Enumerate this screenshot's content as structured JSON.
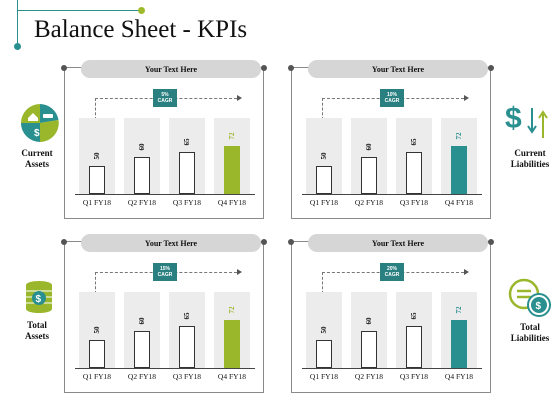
{
  "title": "Balance Sheet - KPIs",
  "colors": {
    "teal": "#2a8f8f",
    "green": "#9ab72b",
    "dark_teal": "#2a8080"
  },
  "side_labels": {
    "current_assets": [
      "Current",
      "Assets"
    ],
    "current_liabilities": [
      "Current",
      "Liabilities"
    ],
    "total_assets": [
      "Total",
      "Assets"
    ],
    "total_liabilities": [
      "Total",
      "Liabilities"
    ]
  },
  "icons": {
    "current_assets": "pie-home-car-money-icon",
    "current_liabilities": "dollar-arrows-icon",
    "total_assets": "coin-stack-icon",
    "total_liabilities": "equals-dollar-coin-icon"
  },
  "panels": [
    {
      "header": "Your Text Here",
      "cagr": [
        "5%",
        "CAGR"
      ],
      "highlight": "green"
    },
    {
      "header": "Your Text Here",
      "cagr": [
        "10%",
        "CAGR"
      ],
      "highlight": "teal"
    },
    {
      "header": "Your Text Here",
      "cagr": [
        "15%",
        "CAGR"
      ],
      "highlight": "green"
    },
    {
      "header": "Your Text Here",
      "cagr": [
        "20%",
        "CAGR"
      ],
      "highlight": "teal"
    }
  ],
  "chart_data": [
    {
      "type": "bar",
      "categories": [
        "Q1 FY18",
        "Q2 FY18",
        "Q3 FY18",
        "Q4 FY18"
      ],
      "values": [
        50,
        60,
        65,
        72
      ]
    },
    {
      "type": "bar",
      "categories": [
        "Q1 FY18",
        "Q2 FY18",
        "Q3 FY18",
        "Q4 FY18"
      ],
      "values": [
        50,
        60,
        65,
        72
      ]
    },
    {
      "type": "bar",
      "categories": [
        "Q1 FY18",
        "Q2 FY18",
        "Q3 FY18",
        "Q4 FY18"
      ],
      "values": [
        50,
        60,
        65,
        72
      ]
    },
    {
      "type": "bar",
      "categories": [
        "Q1 FY18",
        "Q2 FY18",
        "Q3 FY18",
        "Q4 FY18"
      ],
      "values": [
        50,
        60,
        65,
        72
      ]
    }
  ]
}
